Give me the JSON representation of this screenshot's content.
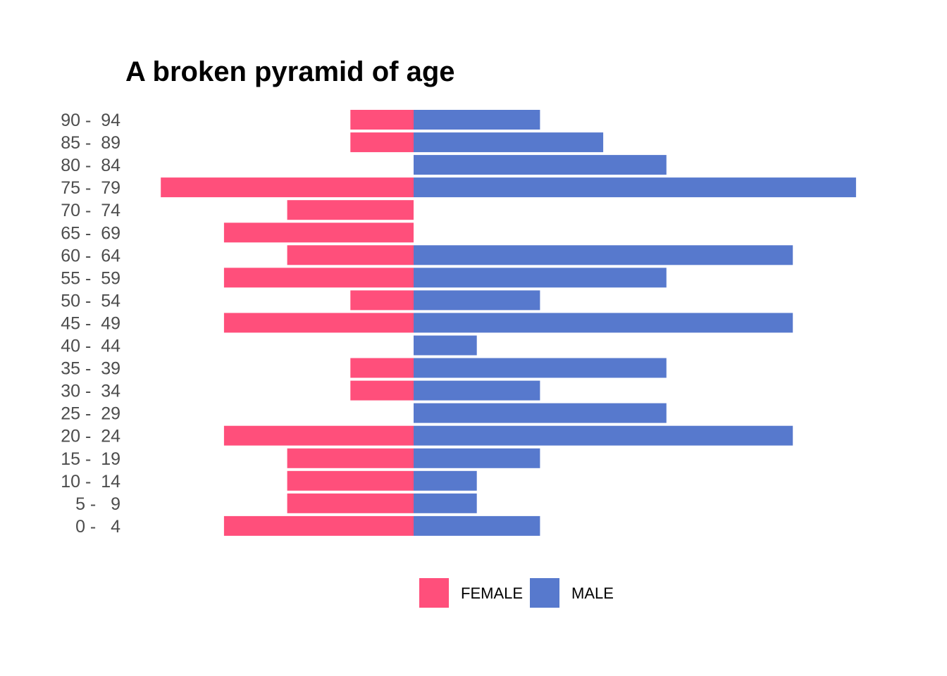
{
  "chart_data": {
    "type": "bar",
    "orientation": "horizontal",
    "layout": "population-pyramid",
    "title": "A broken pyramid of age",
    "xlabel": "",
    "ylabel": "",
    "grid": false,
    "legend_position": "bottom",
    "categories": [
      "0 -   4",
      "5 -   9",
      "10 -  14",
      "15 -  19",
      "20 -  24",
      "25 -  29",
      "30 -  34",
      "35 -  39",
      "40 -  44",
      "45 -  49",
      "50 -  54",
      "55 -  59",
      "60 -  64",
      "65 -  69",
      "70 -  74",
      "75 -  79",
      "80 -  84",
      "85 -  89",
      "90 -  94"
    ],
    "series": [
      {
        "name": "FEMALE",
        "color": "#ff4f7b",
        "side": "left",
        "values": [
          3,
          2,
          2,
          2,
          3,
          0,
          1,
          1,
          0,
          3,
          1,
          3,
          2,
          3,
          2,
          4,
          0,
          1,
          1
        ]
      },
      {
        "name": "MALE",
        "color": "#5779cd",
        "side": "right",
        "values": [
          2,
          1,
          1,
          2,
          6,
          4,
          2,
          4,
          1,
          6,
          2,
          4,
          6,
          0,
          0,
          7,
          4,
          3,
          2
        ]
      }
    ],
    "xlim": [
      -4,
      7
    ]
  }
}
